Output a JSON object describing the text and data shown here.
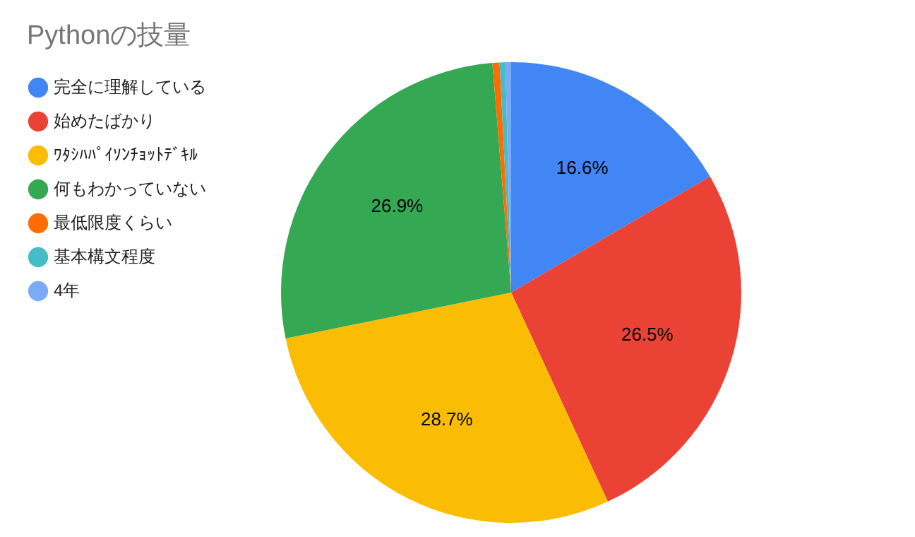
{
  "chart_data": {
    "type": "pie",
    "title": "Pythonの技量",
    "categories": [
      "完全に理解している",
      "始めたばかり",
      "ﾜﾀｼﾊﾊﾟｲｿﾝﾁｮｯﾄﾃﾞｷﾙ",
      "何もわかっていない",
      "最低限度くらい",
      "基本構文程度",
      "4年"
    ],
    "values": [
      16.6,
      26.5,
      28.7,
      26.9,
      0.5,
      0.4,
      0.4
    ],
    "colors": [
      "#4285f4",
      "#ea4335",
      "#fbbc04",
      "#34a853",
      "#ff6d01",
      "#46bdc6",
      "#7baaf7"
    ],
    "value_labels": [
      "16.6%",
      "26.5%",
      "28.7%",
      "26.9%",
      null,
      null,
      null
    ],
    "legend": "top left"
  }
}
